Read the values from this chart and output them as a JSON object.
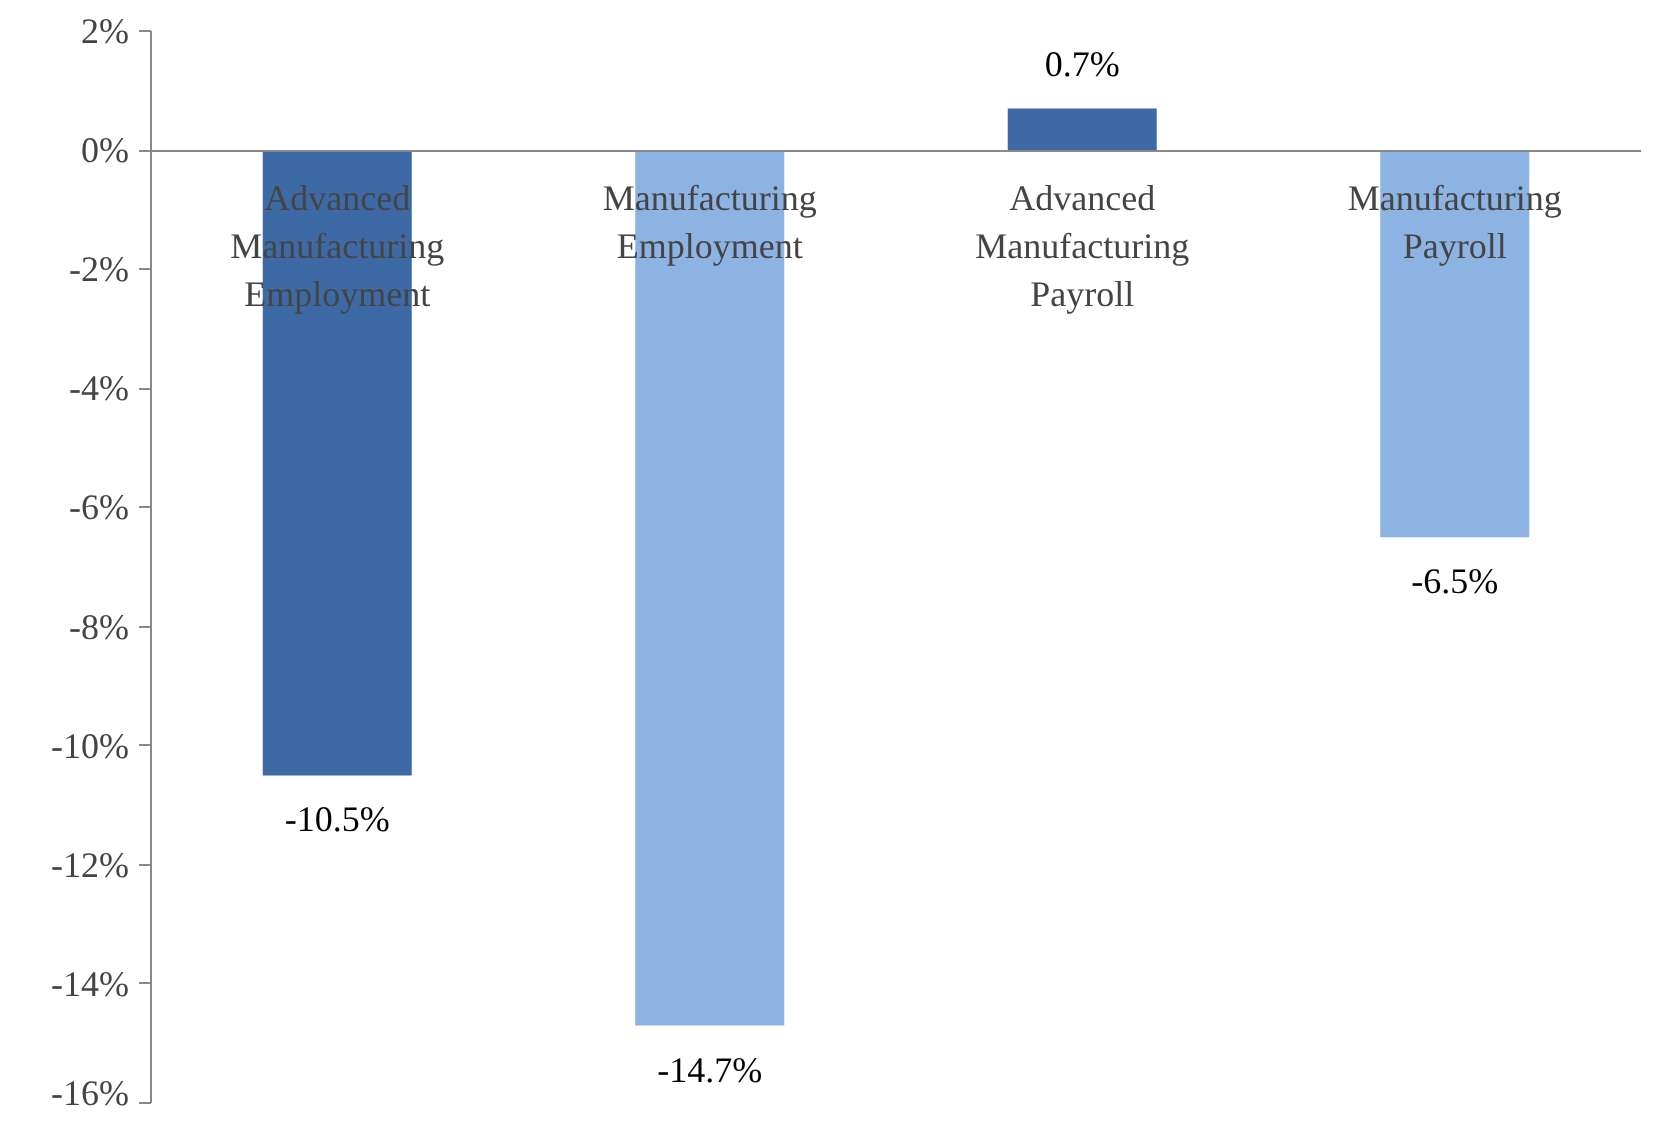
{
  "chart_data": {
    "type": "bar",
    "categories": [
      "Advanced Manufacturing Employment",
      "Manufacturing Employment",
      "Advanced Manufacturing Payroll",
      "Manufacturing Payroll"
    ],
    "values": [
      -10.5,
      -14.7,
      0.7,
      -6.5
    ],
    "colors": [
      "#3d6aa5",
      "#8db3e2",
      "#3d6aa5",
      "#8db3e2"
    ],
    "value_labels": [
      "-10.5%",
      "-14.7%",
      "0.7%",
      "-6.5%"
    ],
    "ylim": [
      -16,
      2
    ],
    "yticks": [
      {
        "value": 2,
        "label": "2%"
      },
      {
        "value": 0,
        "label": "0%"
      },
      {
        "value": -2,
        "label": "-2%"
      },
      {
        "value": -4,
        "label": "-4%"
      },
      {
        "value": -6,
        "label": "-6%"
      },
      {
        "value": -8,
        "label": "-8%"
      },
      {
        "value": -10,
        "label": "-10%"
      },
      {
        "value": -12,
        "label": "-12%"
      },
      {
        "value": -14,
        "label": "-14%"
      },
      {
        "value": -16,
        "label": "-16%"
      }
    ],
    "grid": false
  }
}
